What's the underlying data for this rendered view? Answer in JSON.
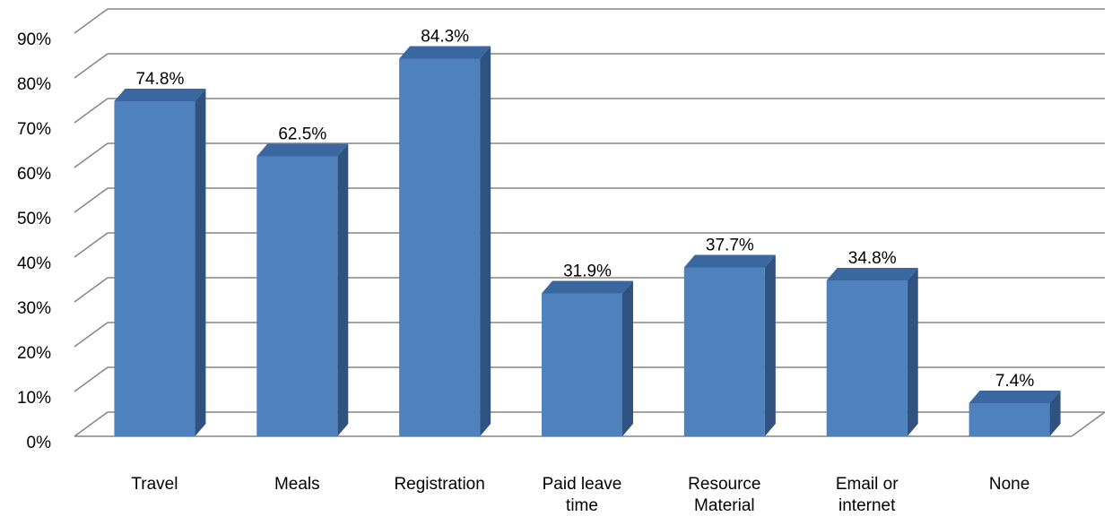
{
  "chart_data": {
    "type": "bar3d",
    "categories": [
      "Travel",
      "Meals",
      "Registration",
      "Paid leave time",
      "Resource Material",
      "Email or internet",
      "None"
    ],
    "values": [
      74.8,
      62.5,
      84.3,
      31.9,
      37.7,
      34.8,
      7.4
    ],
    "value_labels": [
      "74.8%",
      "62.5%",
      "84.3%",
      "31.9%",
      "37.7%",
      "34.8%",
      "7.4%"
    ],
    "color": "#4f81bd",
    "ylim": [
      0,
      90
    ],
    "yticks": [
      {
        "value": 0,
        "label": "0%"
      },
      {
        "value": 10,
        "label": "10%"
      },
      {
        "value": 20,
        "label": "20%"
      },
      {
        "value": 30,
        "label": "30%"
      },
      {
        "value": 40,
        "label": "40%"
      },
      {
        "value": 50,
        "label": "50%"
      },
      {
        "value": 60,
        "label": "60%"
      },
      {
        "value": 70,
        "label": "70%"
      },
      {
        "value": 80,
        "label": "80%"
      },
      {
        "value": 90,
        "label": "90%"
      }
    ],
    "grid": true
  }
}
